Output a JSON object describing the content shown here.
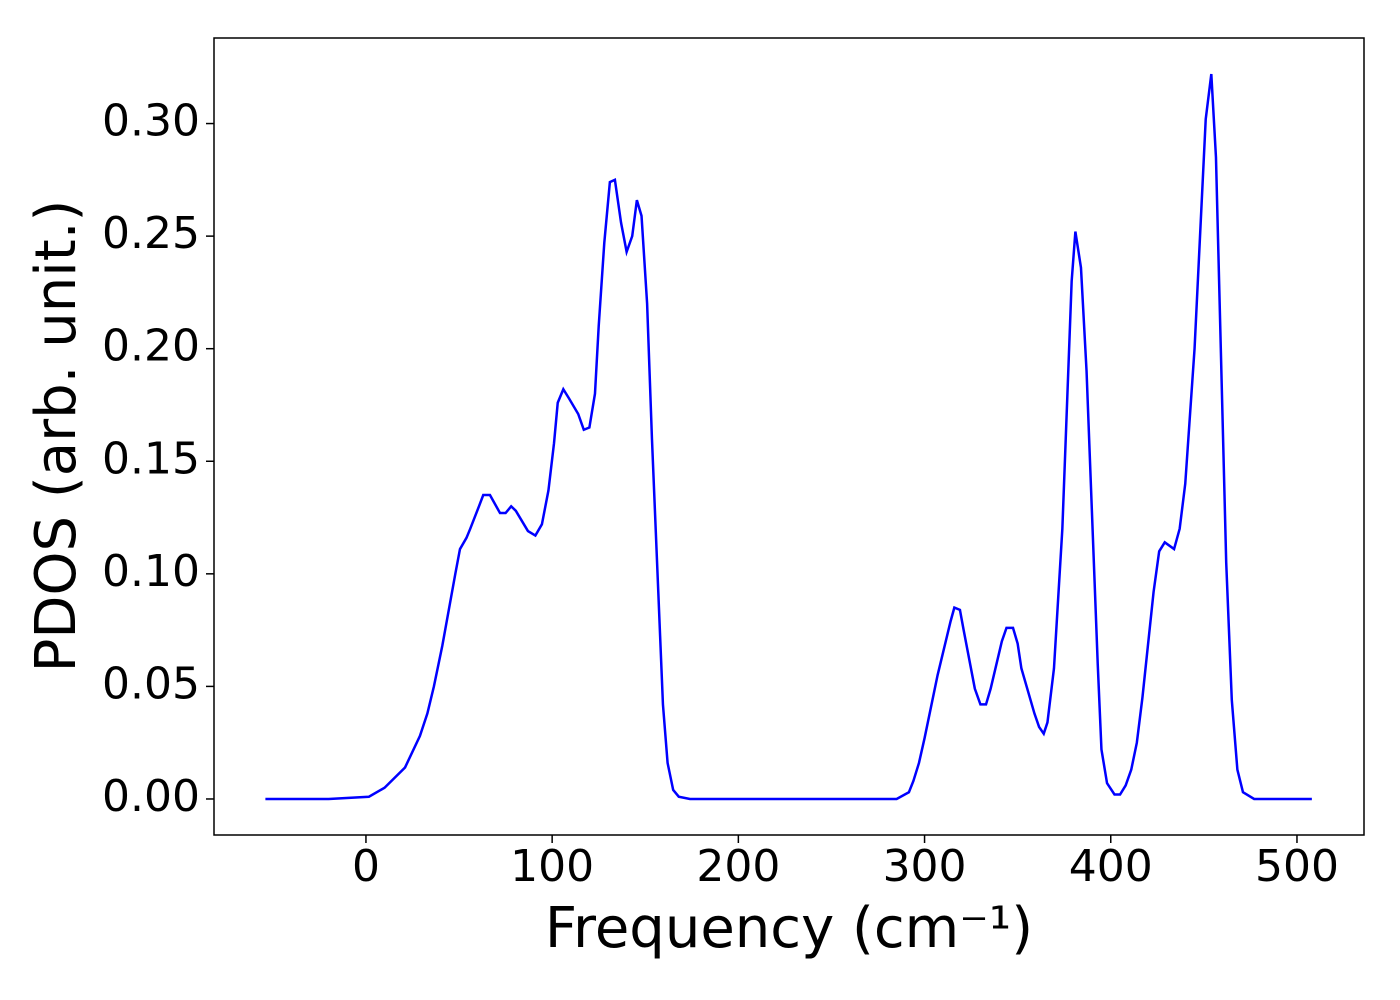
{
  "chart_data": {
    "type": "line",
    "xlabel": "Frequency (cm⁻¹)",
    "ylabel": "PDOS (arb. unit.)",
    "xlim": [
      -81.6,
      536
    ],
    "ylim": [
      -0.016,
      0.338
    ],
    "xticks": [
      0,
      100,
      200,
      300,
      400,
      500
    ],
    "yticks": [
      {
        "value": 0,
        "label": "0.00"
      },
      {
        "value": 0.05,
        "label": "0.05"
      },
      {
        "value": 0.1,
        "label": "0.10"
      },
      {
        "value": 0.15,
        "label": "0.15"
      },
      {
        "value": 0.2,
        "label": "0.20"
      },
      {
        "value": 0.25,
        "label": "0.25"
      },
      {
        "value": 0.3,
        "label": "0.30"
      }
    ],
    "series": [
      {
        "color": "#0000ff",
        "x": [
          -54,
          -20,
          1.6,
          10,
          21,
          29,
          33,
          36.5,
          41,
          48,
          50.5,
          54,
          56,
          60.7,
          63,
          66.6,
          72,
          75,
          78,
          80.5,
          87,
          91,
          94.5,
          98,
          101,
          103,
          106,
          109,
          114,
          117,
          120,
          123,
          125,
          128,
          131,
          133.7,
          137,
          140,
          143,
          145.5,
          148,
          151,
          153.6,
          157,
          159.5,
          162,
          165,
          168,
          174,
          200,
          285,
          291.6,
          294,
          297,
          300,
          307,
          314,
          316,
          319,
          321,
          327,
          330,
          333,
          335.5,
          341.5,
          344,
          347.5,
          350,
          352,
          359,
          361.5,
          364,
          366,
          369.5,
          374,
          379,
          381,
          384,
          387,
          393,
          395,
          398,
          402,
          405,
          408,
          411,
          414,
          417,
          423,
          426,
          429,
          434,
          437,
          440,
          445,
          451,
          454,
          456.5,
          462,
          465,
          468,
          471,
          477,
          508
        ],
        "values": [
          0,
          0,
          0.001,
          0.005,
          0.014,
          0.028,
          0.038,
          0.05,
          0.068,
          0.1,
          0.111,
          0.116,
          0.12,
          0.13,
          0.135,
          0.135,
          0.127,
          0.127,
          0.13,
          0.128,
          0.119,
          0.117,
          0.122,
          0.137,
          0.158,
          0.176,
          0.182,
          0.178,
          0.171,
          0.164,
          0.165,
          0.18,
          0.21,
          0.247,
          0.274,
          0.275,
          0.256,
          0.243,
          0.25,
          0.266,
          0.259,
          0.22,
          0.16,
          0.092,
          0.042,
          0.016,
          0.004,
          0.001,
          0,
          0,
          0,
          0.003,
          0.008,
          0.016,
          0.027,
          0.055,
          0.079,
          0.085,
          0.084,
          0.075,
          0.049,
          0.042,
          0.042,
          0.049,
          0.07,
          0.076,
          0.076,
          0.069,
          0.058,
          0.038,
          0.032,
          0.029,
          0.034,
          0.058,
          0.12,
          0.23,
          0.252,
          0.236,
          0.19,
          0.06,
          0.022,
          0.007,
          0.002,
          0.002,
          0.006,
          0.013,
          0.025,
          0.045,
          0.092,
          0.11,
          0.114,
          0.111,
          0.12,
          0.14,
          0.2,
          0.302,
          0.322,
          0.285,
          0.105,
          0.044,
          0.013,
          0.003,
          0,
          0
        ]
      }
    ]
  }
}
